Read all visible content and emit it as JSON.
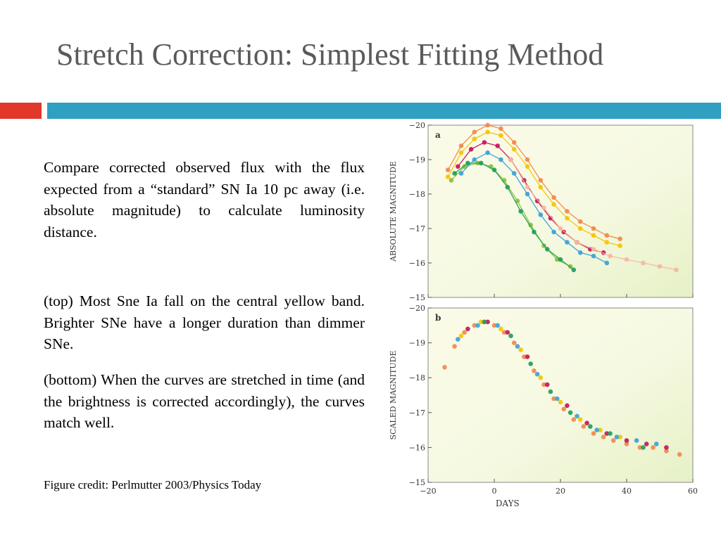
{
  "slide": {
    "title": "Stretch Correction: Simplest Fitting Method",
    "accent_red": "#e2372b",
    "accent_blue": "#2f9fc2",
    "paragraphs": [
      "Compare corrected observed flux with the flux expected from a “standard” SN Ia  10 pc away (i.e. absolute magnitude) to calculate luminosity distance.",
      "(top) Most Sne Ia fall on the central yellow band. Brighter SNe have a longer duration than dimmer SNe.",
      "(bottom) When the curves are stretched in time (and the brightness is corrected accordingly), the curves match well."
    ],
    "credit": "Figure credit: Perlmutter 2003/Physics Today"
  },
  "chart_data": [
    {
      "type": "scatter",
      "panel_label": "a",
      "ylabel": "ABSOLUTE MAGNITUDE",
      "xlim": [
        -20,
        60
      ],
      "ylim": [
        -15,
        -20
      ],
      "y_inverted": true,
      "yticks": [
        "−20",
        "−19",
        "−18",
        "−17",
        "−16",
        "−15"
      ],
      "background": "yellow-green gradient",
      "series": [
        {
          "color": "#f5c400",
          "x": [
            -14,
            -10,
            -6,
            -2,
            2,
            6,
            10,
            14,
            18,
            22,
            26,
            30,
            34,
            38
          ],
          "y": [
            -18.5,
            -19.2,
            -19.6,
            -19.8,
            -19.7,
            -19.3,
            -18.8,
            -18.2,
            -17.7,
            -17.3,
            -17.0,
            -16.8,
            -16.6,
            -16.5
          ]
        },
        {
          "color": "#f08a4b",
          "x": [
            -14,
            -10,
            -6,
            -2,
            2,
            6,
            10,
            14,
            18,
            22,
            26,
            30,
            34,
            38
          ],
          "y": [
            -18.7,
            -19.4,
            -19.8,
            -20.0,
            -19.9,
            -19.5,
            -19.0,
            -18.4,
            -17.9,
            -17.5,
            -17.2,
            -17.0,
            -16.8,
            -16.7
          ]
        },
        {
          "color": "#8bbf3a",
          "x": [
            -13,
            -9,
            -5,
            -1,
            3,
            7,
            11,
            15,
            19,
            23
          ],
          "y": [
            -18.4,
            -18.8,
            -18.9,
            -18.8,
            -18.4,
            -17.8,
            -17.1,
            -16.5,
            -16.1,
            -15.9
          ]
        },
        {
          "color": "#1fa05a",
          "x": [
            -12,
            -8,
            -4,
            0,
            4,
            8,
            12,
            16,
            20,
            24
          ],
          "y": [
            -18.6,
            -18.9,
            -18.9,
            -18.7,
            -18.2,
            -17.5,
            -16.9,
            -16.4,
            -16.1,
            -15.8
          ]
        },
        {
          "color": "#c2185b",
          "x": [
            -11,
            -7,
            -3,
            1,
            5,
            9,
            13,
            17,
            21,
            25,
            29,
            33
          ],
          "y": [
            -18.8,
            -19.3,
            -19.5,
            -19.4,
            -19.0,
            -18.4,
            -17.8,
            -17.3,
            -16.9,
            -16.6,
            -16.4,
            -16.3
          ]
        },
        {
          "color": "#3aa3d8",
          "x": [
            -10,
            -6,
            -2,
            2,
            6,
            10,
            14,
            18,
            22,
            26,
            30,
            34
          ],
          "y": [
            -18.6,
            -19.0,
            -19.2,
            -19.0,
            -18.6,
            -18.0,
            -17.4,
            -16.9,
            -16.6,
            -16.3,
            -16.2,
            -16.0
          ]
        },
        {
          "color": "#f4b8a0",
          "x": [
            5,
            10,
            15,
            20,
            25,
            30,
            35,
            40,
            45,
            50,
            55
          ],
          "y": [
            -19.0,
            -18.2,
            -17.6,
            -17.0,
            -16.6,
            -16.4,
            -16.2,
            -16.1,
            -16.0,
            -15.9,
            -15.8
          ]
        }
      ]
    },
    {
      "type": "scatter",
      "panel_label": "b",
      "ylabel": "SCALED MAGNITUDE",
      "xlabel": "DAYS",
      "xlim": [
        -20,
        60
      ],
      "ylim": [
        -15,
        -20
      ],
      "y_inverted": true,
      "xticks": [
        "−20",
        "0",
        "20",
        "40",
        "60"
      ],
      "yticks": [
        "−20",
        "−19",
        "−18",
        "−17",
        "−16",
        "−15"
      ],
      "background": "yellow-green gradient",
      "series": [
        {
          "color": "#f08a4b",
          "x": [
            -15,
            -12,
            -9,
            -6,
            -3,
            0,
            3,
            6,
            9,
            12,
            15,
            18,
            21,
            24,
            27,
            30,
            33,
            36,
            40,
            44,
            48,
            52,
            56
          ],
          "y": [
            -18.3,
            -18.9,
            -19.3,
            -19.5,
            -19.6,
            -19.5,
            -19.3,
            -19.0,
            -18.6,
            -18.2,
            -17.8,
            -17.4,
            -17.1,
            -16.8,
            -16.6,
            -16.4,
            -16.3,
            -16.2,
            -16.1,
            -16.0,
            -16.0,
            -15.9,
            -15.8
          ]
        },
        {
          "color": "#f5c400",
          "x": [
            -10,
            -4,
            2,
            8,
            14,
            20,
            26,
            32,
            38
          ],
          "y": [
            -19.2,
            -19.6,
            -19.4,
            -18.8,
            -18.0,
            -17.3,
            -16.8,
            -16.5,
            -16.3
          ]
        },
        {
          "color": "#c2185b",
          "x": [
            -8,
            -2,
            4,
            10,
            16,
            22,
            28,
            34,
            40,
            46,
            52
          ],
          "y": [
            -19.4,
            -19.6,
            -19.3,
            -18.6,
            -17.8,
            -17.2,
            -16.7,
            -16.4,
            -16.2,
            -16.1,
            -16.0
          ]
        },
        {
          "color": "#3aa3d8",
          "x": [
            -11,
            -5,
            1,
            7,
            13,
            19,
            25,
            31,
            37,
            43,
            49
          ],
          "y": [
            -19.1,
            -19.5,
            -19.5,
            -18.9,
            -18.1,
            -17.4,
            -16.9,
            -16.5,
            -16.3,
            -16.2,
            -16.1
          ]
        },
        {
          "color": "#1fa05a",
          "x": [
            -3,
            5,
            11,
            17,
            23,
            29,
            35,
            45
          ],
          "y": [
            -19.6,
            -19.2,
            -18.4,
            -17.6,
            -17.0,
            -16.6,
            -16.4,
            -16.0
          ]
        }
      ]
    }
  ]
}
